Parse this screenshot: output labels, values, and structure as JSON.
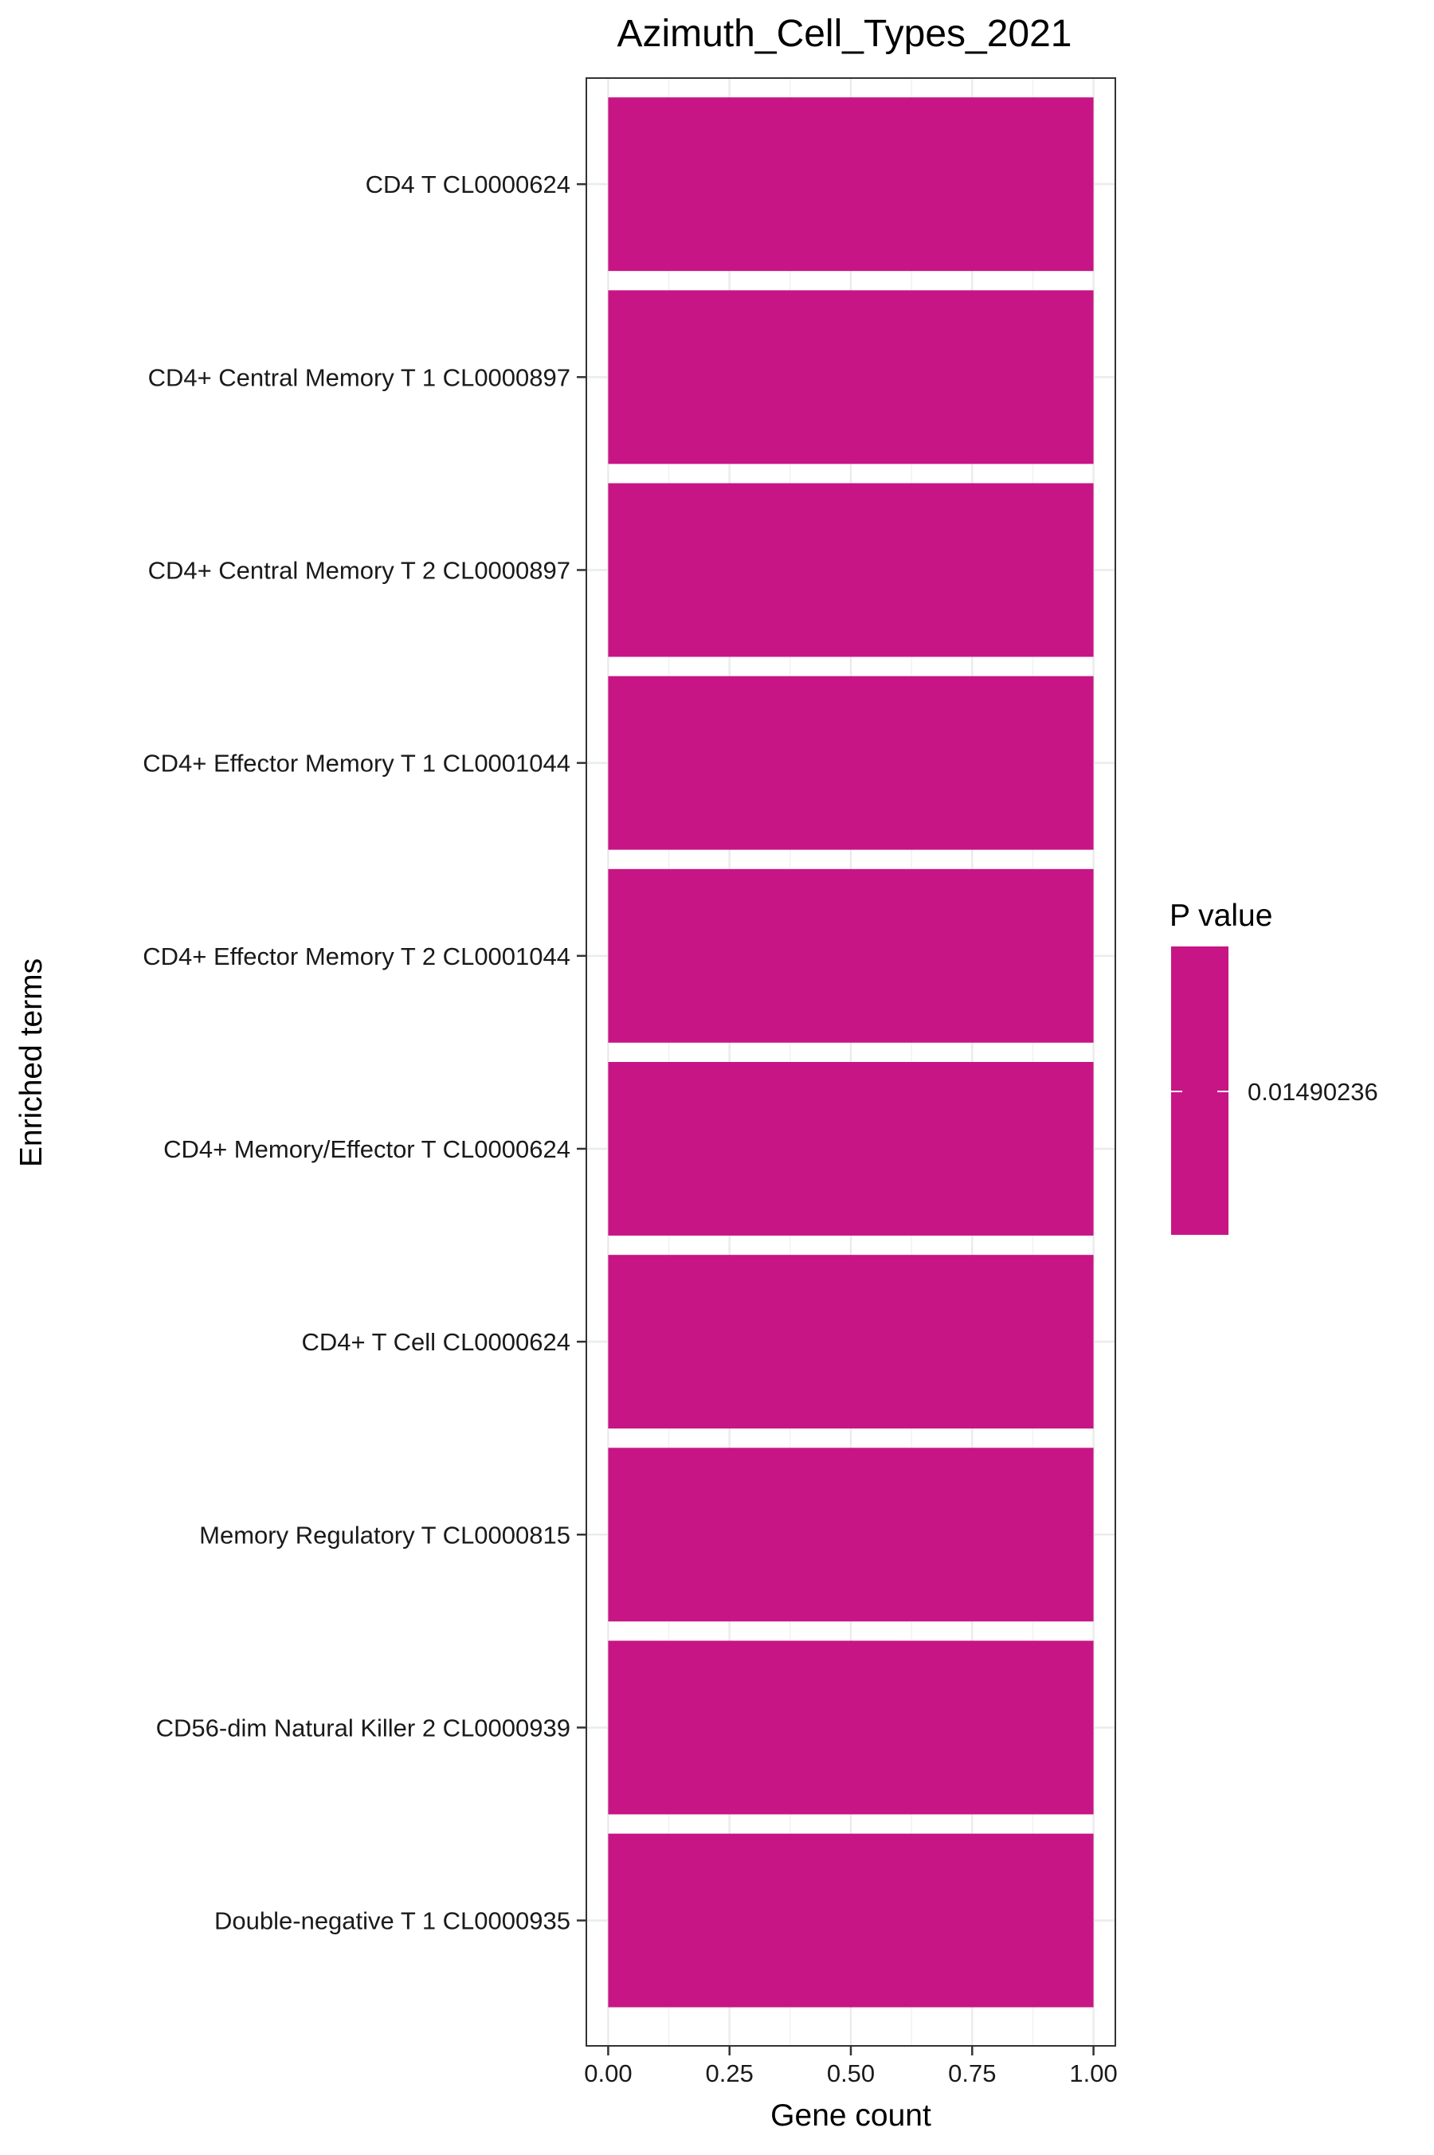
{
  "chart_data": {
    "type": "bar",
    "orientation": "horizontal",
    "title": "Azimuth_Cell_Types_2021",
    "xlabel": "Gene count",
    "ylabel": "Enriched terms",
    "xlim": [
      0,
      1
    ],
    "x_ticks": [
      0.0,
      0.25,
      0.5,
      0.75,
      1.0
    ],
    "x_tick_labels": [
      "0.00",
      "0.25",
      "0.50",
      "0.75",
      "1.00"
    ],
    "grid": true,
    "categories": [
      "CD4 T CL0000624",
      "CD4+ Central Memory T 1 CL0000897",
      "CD4+ Central Memory T 2 CL0000897",
      "CD4+ Effector Memory T 1 CL0001044",
      "CD4+ Effector Memory T 2 CL0001044",
      "CD4+ Memory/Effector T CL0000624",
      "CD4+ T Cell CL0000624",
      "Memory Regulatory T CL0000815",
      "CD56-dim Natural Killer 2 CL0000939",
      "Double-negative T 1 CL0000935"
    ],
    "values": [
      1,
      1,
      1,
      1,
      1,
      1,
      1,
      1,
      1,
      1
    ],
    "bar_color": "#c71585",
    "legend": {
      "title": "P value",
      "labels": [
        "0.01490236"
      ],
      "placement": "right",
      "color": "#c71585"
    }
  }
}
